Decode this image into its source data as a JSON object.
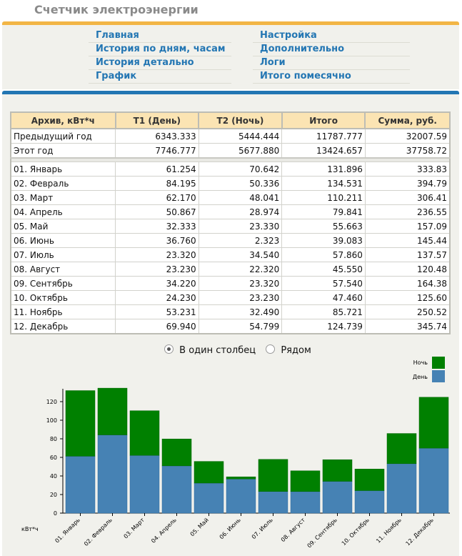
{
  "app": {
    "title": "Счетчик электроэнергии"
  },
  "nav": [
    {
      "label": "Главная"
    },
    {
      "label": "История по дням, часам"
    },
    {
      "label": "История детально"
    },
    {
      "label": "График"
    },
    {
      "label": "Настройка"
    },
    {
      "label": "Дополнительно"
    },
    {
      "label": "Логи"
    },
    {
      "label": "Итого помесячно"
    }
  ],
  "table": {
    "headers": [
      "Архив, кВт*ч",
      "T1 (День)",
      "T2 (Ночь)",
      "Итого",
      "Сумма, руб."
    ],
    "summary": [
      [
        "Предыдущий год",
        "6343.333",
        "5444.444",
        "11787.777",
        "32007.59"
      ],
      [
        "Этот год",
        "7746.777",
        "5677.880",
        "13424.657",
        "37758.72"
      ]
    ],
    "months": [
      [
        "01. Январь",
        "61.254",
        "70.642",
        "131.896",
        "333.83"
      ],
      [
        "02. Февраль",
        "84.195",
        "50.336",
        "134.531",
        "394.79"
      ],
      [
        "03. Март",
        "62.170",
        "48.041",
        "110.211",
        "306.41"
      ],
      [
        "04. Апрель",
        "50.867",
        "28.974",
        "79.841",
        "236.55"
      ],
      [
        "05. Май",
        "32.333",
        "23.330",
        "55.663",
        "157.09"
      ],
      [
        "06. Июнь",
        "36.760",
        "2.323",
        "39.083",
        "145.44"
      ],
      [
        "07. Июль",
        "23.320",
        "34.540",
        "57.860",
        "137.57"
      ],
      [
        "08. Август",
        "23.230",
        "22.320",
        "45.550",
        "120.48"
      ],
      [
        "09. Сентябрь",
        "34.220",
        "23.320",
        "57.540",
        "164.38"
      ],
      [
        "10. Октябрь",
        "24.230",
        "23.230",
        "47.460",
        "125.60"
      ],
      [
        "11. Ноябрь",
        "53.231",
        "32.490",
        "85.721",
        "250.52"
      ],
      [
        "12. Декабрь",
        "69.940",
        "54.799",
        "124.739",
        "345.74"
      ]
    ]
  },
  "view_options": [
    {
      "label": "В один столбец",
      "selected": true
    },
    {
      "label": "Рядом",
      "selected": false
    }
  ],
  "chart_data": {
    "type": "bar",
    "stacked": true,
    "categories": [
      "01. Январь",
      "02. Февраль",
      "03. Март",
      "04. Апрель",
      "05. Май",
      "06. Июнь",
      "07. Июль",
      "08. Август",
      "09. Сентябрь",
      "10. Октябрь",
      "11. Ноябрь",
      "12. Декабрь"
    ],
    "series": [
      {
        "name": "День",
        "color": "#4682b4",
        "values": [
          61.254,
          84.195,
          62.17,
          50.867,
          32.333,
          36.76,
          23.32,
          23.23,
          34.22,
          24.23,
          53.231,
          69.94
        ]
      },
      {
        "name": "Ночь",
        "color": "#008000",
        "values": [
          70.642,
          50.336,
          48.041,
          28.974,
          23.33,
          2.323,
          34.54,
          22.32,
          23.32,
          23.23,
          32.49,
          54.799
        ]
      }
    ],
    "ylabel": "кВт*ч",
    "yticks": [
      0,
      20,
      40,
      60,
      80,
      100,
      120
    ],
    "ylim": [
      0,
      135
    ],
    "legend_position": "top-right",
    "grid": false
  }
}
